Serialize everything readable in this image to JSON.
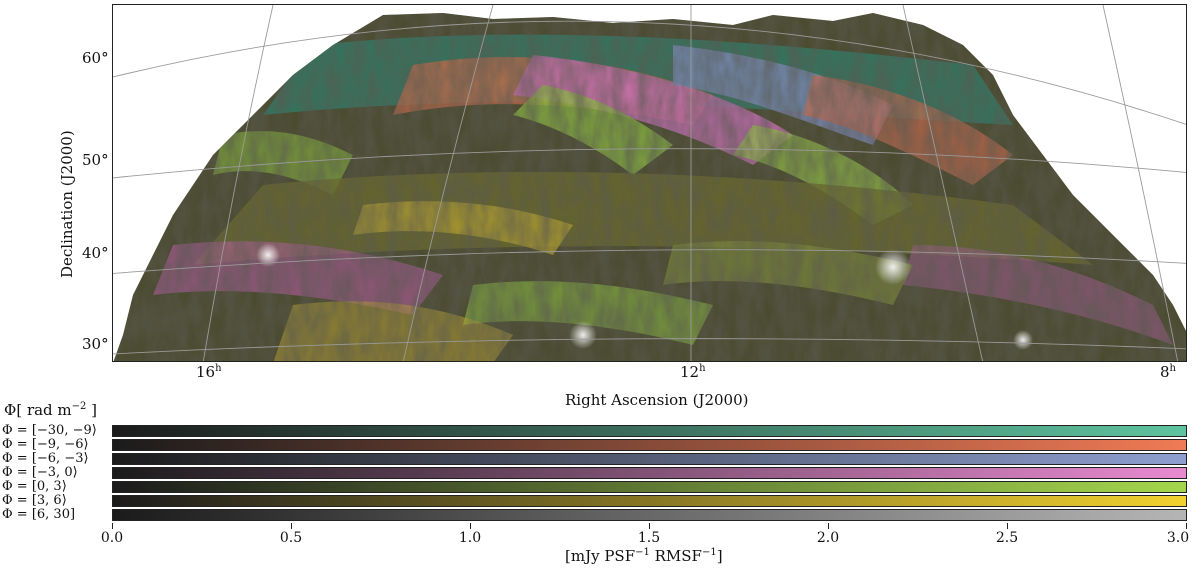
{
  "map": {
    "y_axis_label": "Declination (J2000)",
    "x_axis_label": "Right Ascension (J2000)",
    "dec_ticks": [
      "60°",
      "50°",
      "40°",
      "30°"
    ],
    "ra_ticks": [
      {
        "hours": "16",
        "unit": "h"
      },
      {
        "hours": "12",
        "unit": "h"
      },
      {
        "hours": "8",
        "unit": "h"
      }
    ]
  },
  "legend": {
    "title_symbol": "Φ",
    "title_units": "rad m",
    "title_exponent": "−2",
    "bins": [
      {
        "label": "Φ = [−30, −9⟩",
        "color": "#5ec4a0"
      },
      {
        "label": "Φ = [−9, −6⟩",
        "color": "#f07a55"
      },
      {
        "label": "Φ = [−6, −3⟩",
        "color": "#8e9fd0"
      },
      {
        "label": "Φ = [−3, 0⟩",
        "color": "#e88ad0"
      },
      {
        "label": "Φ = [0, 3⟩",
        "color": "#a4d64c"
      },
      {
        "label": "Φ = [3, 6⟩",
        "color": "#f2d22e"
      },
      {
        "label": "Φ = [6, 30]",
        "color": "#b5b5b5"
      }
    ]
  },
  "colorbar": {
    "ticks": [
      "0.0",
      "0.5",
      "1.0",
      "1.5",
      "2.0",
      "2.5",
      "3.0"
    ],
    "range": [
      0.0,
      3.0
    ],
    "label": "[mJy PSF",
    "label_exp1": "−1",
    "label_mid": " RMSF",
    "label_exp2": "−1",
    "label_end": "]"
  }
}
